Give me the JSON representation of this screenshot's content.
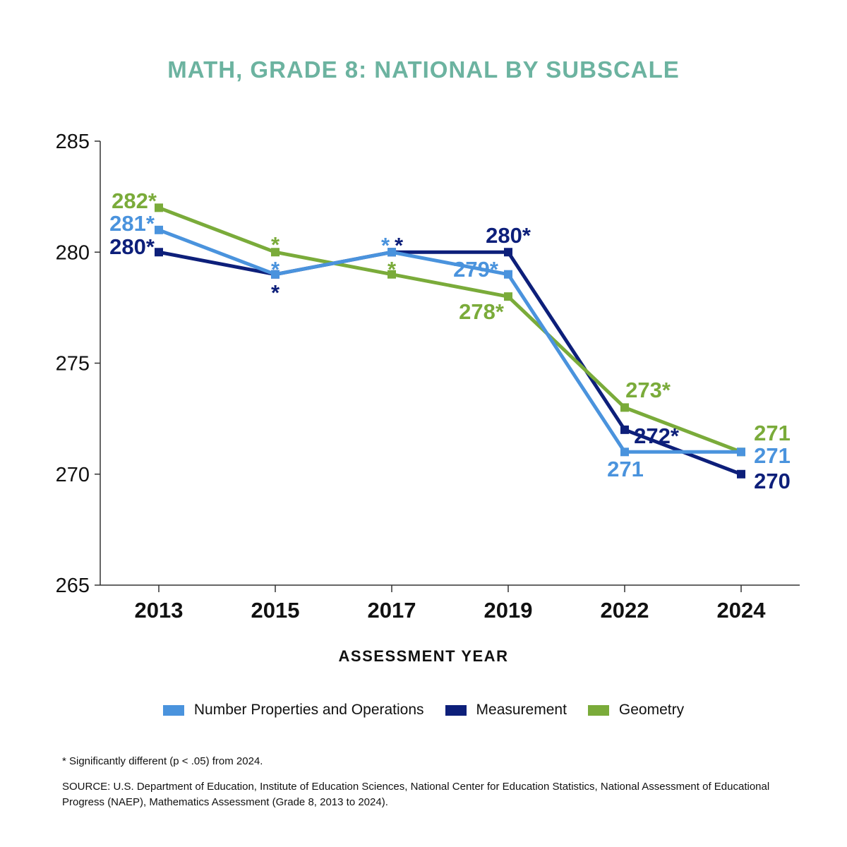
{
  "chart_data": {
    "type": "line",
    "title": "MATH, GRADE 8: NATIONAL BY SUBSCALE",
    "xlabel": "ASSESSMENT YEAR",
    "ylabel": "",
    "categories": [
      "2013",
      "2015",
      "2017",
      "2019",
      "2022",
      "2024"
    ],
    "ylim": [
      265,
      285
    ],
    "yticks": [
      "285",
      "280",
      "275",
      "270",
      "265"
    ],
    "grid": false,
    "legend_position": "bottom",
    "series": [
      {
        "name": "Number Properties and Operations",
        "color": "#4a93dd",
        "values": [
          281,
          279,
          280,
          279,
          271,
          271
        ],
        "labels": [
          "281*",
          "*",
          "*",
          "279*",
          "271",
          "271"
        ]
      },
      {
        "name": "Measurement",
        "color": "#0d1f7a",
        "values": [
          280,
          279,
          280,
          280,
          272,
          270
        ],
        "labels": [
          "280*",
          "*",
          "*",
          "280*",
          "272*",
          "270"
        ]
      },
      {
        "name": "Geometry",
        "color": "#7aab3a",
        "values": [
          282,
          280,
          279,
          278,
          273,
          271
        ],
        "labels": [
          "282*",
          "*",
          "*",
          "278*",
          "273*",
          "271"
        ]
      }
    ]
  },
  "footnote": "* Significantly different (p < .05) from 2024.",
  "source": "SOURCE: U.S. Department of Education, Institute of Education Sciences, National Center for Education Statistics, National Assessment of Educational Progress (NAEP), Mathematics Assessment (Grade 8, 2013 to 2024)."
}
